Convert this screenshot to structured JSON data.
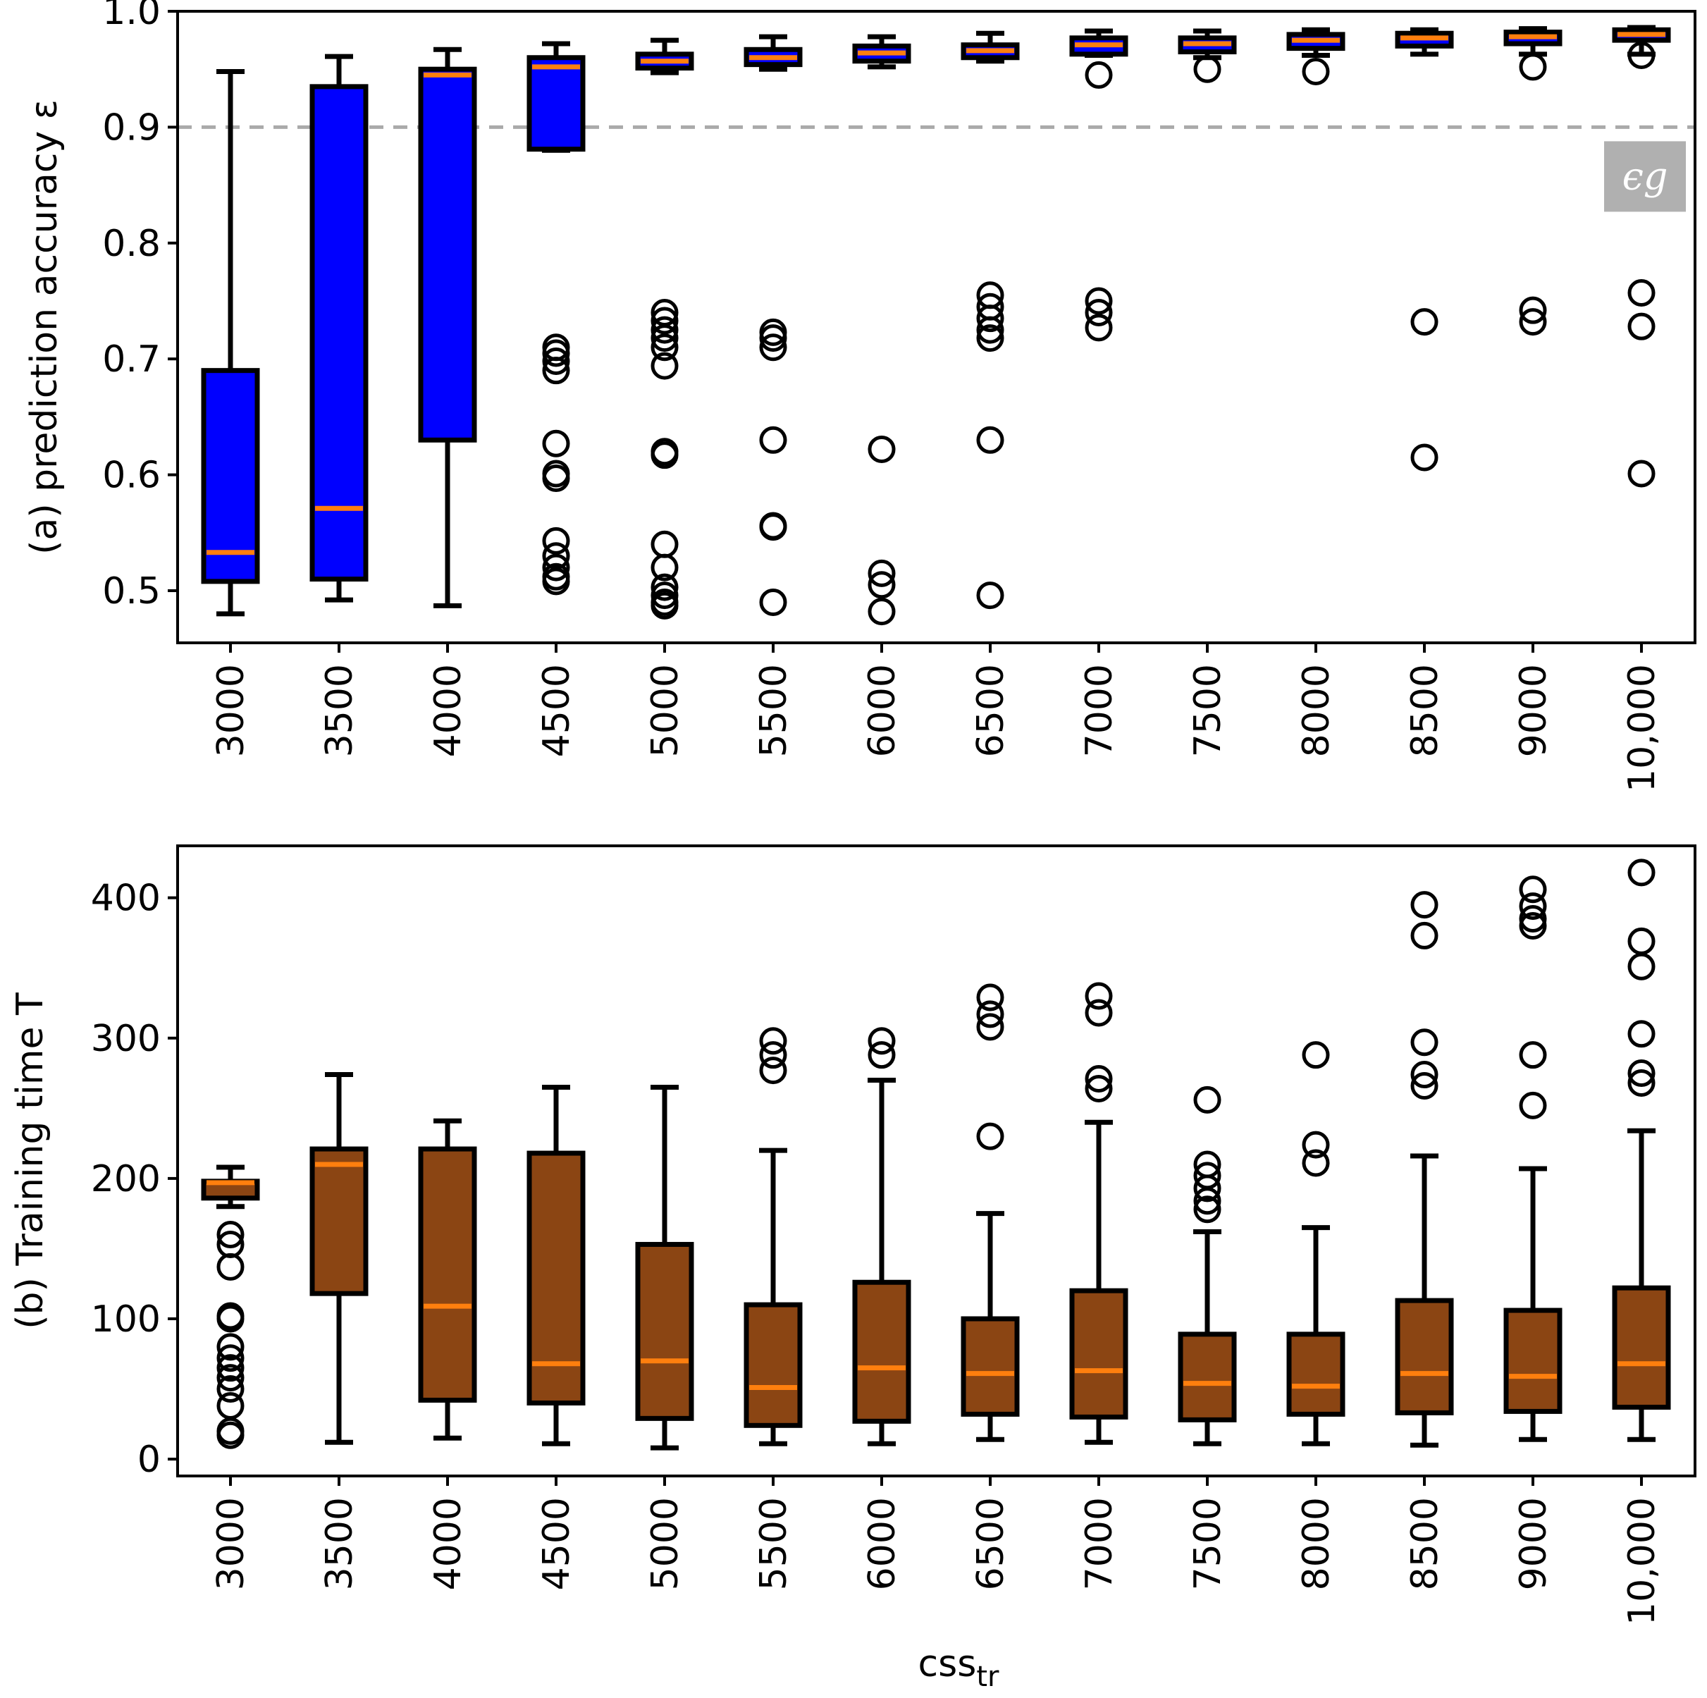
{
  "chart_data": [
    {
      "type": "box",
      "panel": "top",
      "ylabel": "(a) prediction accuracy ε",
      "xlabel": "",
      "ylim": [
        0.455,
        1.0
      ],
      "yticks": [
        0.5,
        0.6,
        0.7,
        0.8,
        0.9,
        1.0
      ],
      "ytick_labels": [
        "0.5",
        "0.6",
        "0.7",
        "0.8",
        "0.9",
        "1.0"
      ],
      "box_color": "#0000ff",
      "median_color": "#ff7f0e",
      "reference_line": {
        "value": 0.9,
        "label": "ϵg",
        "style": "dashed",
        "color": "#aaaaaa"
      },
      "categories": [
        "3000",
        "3500",
        "4000",
        "4500",
        "5000",
        "5500",
        "6000",
        "6500",
        "7000",
        "7500",
        "8000",
        "8500",
        "9000",
        "10,000"
      ],
      "boxes": [
        {
          "whisker_low": 0.48,
          "q1": 0.508,
          "median": 0.533,
          "q3": 0.69,
          "whisker_high": 0.948,
          "fliers": []
        },
        {
          "whisker_low": 0.492,
          "q1": 0.51,
          "median": 0.571,
          "q3": 0.935,
          "whisker_high": 0.961,
          "fliers": []
        },
        {
          "whisker_low": 0.487,
          "q1": 0.63,
          "median": 0.945,
          "q3": 0.95,
          "whisker_high": 0.967,
          "fliers": []
        },
        {
          "whisker_low": 0.88,
          "q1": 0.881,
          "median": 0.952,
          "q3": 0.96,
          "whisker_high": 0.972,
          "fliers": [
            0.71,
            0.705,
            0.698,
            0.69,
            0.627,
            0.601,
            0.597,
            0.543,
            0.53,
            0.52,
            0.512,
            0.508
          ]
        },
        {
          "whisker_low": 0.947,
          "q1": 0.951,
          "median": 0.957,
          "q3": 0.963,
          "whisker_high": 0.975,
          "fliers": [
            0.74,
            0.733,
            0.725,
            0.718,
            0.71,
            0.694,
            0.62,
            0.617,
            0.54,
            0.52,
            0.503,
            0.496,
            0.49,
            0.487
          ]
        },
        {
          "whisker_low": 0.95,
          "q1": 0.954,
          "median": 0.96,
          "q3": 0.967,
          "whisker_high": 0.978,
          "fliers": [
            0.723,
            0.718,
            0.71,
            0.63,
            0.556,
            0.555,
            0.49
          ]
        },
        {
          "whisker_low": 0.952,
          "q1": 0.957,
          "median": 0.964,
          "q3": 0.97,
          "whisker_high": 0.978,
          "fliers": [
            0.622,
            0.515,
            0.505,
            0.482
          ]
        },
        {
          "whisker_low": 0.957,
          "q1": 0.96,
          "median": 0.966,
          "q3": 0.971,
          "whisker_high": 0.981,
          "fliers": [
            0.755,
            0.745,
            0.735,
            0.725,
            0.718,
            0.63,
            0.496
          ]
        },
        {
          "whisker_low": 0.962,
          "q1": 0.963,
          "median": 0.971,
          "q3": 0.977,
          "whisker_high": 0.983,
          "fliers": [
            0.945,
            0.75,
            0.74,
            0.727
          ]
        },
        {
          "whisker_low": 0.96,
          "q1": 0.965,
          "median": 0.972,
          "q3": 0.977,
          "whisker_high": 0.983,
          "fliers": [
            0.95
          ]
        },
        {
          "whisker_low": 0.962,
          "q1": 0.968,
          "median": 0.975,
          "q3": 0.98,
          "whisker_high": 0.984,
          "fliers": [
            0.948
          ]
        },
        {
          "whisker_low": 0.963,
          "q1": 0.97,
          "median": 0.977,
          "q3": 0.981,
          "whisker_high": 0.984,
          "fliers": [
            0.732,
            0.615
          ]
        },
        {
          "whisker_low": 0.963,
          "q1": 0.972,
          "median": 0.978,
          "q3": 0.982,
          "whisker_high": 0.985,
          "fliers": [
            0.952,
            0.742,
            0.732
          ]
        },
        {
          "whisker_low": 0.963,
          "q1": 0.975,
          "median": 0.98,
          "q3": 0.984,
          "whisker_high": 0.986,
          "fliers": [
            0.962,
            0.757,
            0.728,
            0.601
          ]
        }
      ]
    },
    {
      "type": "box",
      "panel": "bottom",
      "ylabel": "(b) Training time T",
      "xlabel_main": "css",
      "xlabel_sub": "tr",
      "ylim": [
        -12,
        437
      ],
      "yticks": [
        0,
        100,
        200,
        300,
        400
      ],
      "ytick_labels": [
        "0",
        "100",
        "200",
        "300",
        "400"
      ],
      "box_color": "#8b4513",
      "median_color": "#ff7f0e",
      "categories": [
        "3000",
        "3500",
        "4000",
        "4500",
        "5000",
        "5500",
        "6000",
        "6500",
        "7000",
        "7500",
        "8000",
        "8500",
        "9000",
        "10,000"
      ],
      "boxes": [
        {
          "whisker_low": 180,
          "q1": 186,
          "median": 197,
          "q3": 198,
          "whisker_high": 208,
          "fliers": [
            160,
            153,
            137,
            102,
            100,
            80,
            72,
            65,
            58,
            50,
            38,
            20,
            17
          ]
        },
        {
          "whisker_low": 12,
          "q1": 118,
          "median": 210,
          "q3": 221,
          "whisker_high": 274,
          "fliers": []
        },
        {
          "whisker_low": 15,
          "q1": 42,
          "median": 109,
          "q3": 221,
          "whisker_high": 241,
          "fliers": []
        },
        {
          "whisker_low": 11,
          "q1": 40,
          "median": 68,
          "q3": 218,
          "whisker_high": 265,
          "fliers": []
        },
        {
          "whisker_low": 8,
          "q1": 29,
          "median": 70,
          "q3": 153,
          "whisker_high": 265,
          "fliers": []
        },
        {
          "whisker_low": 11,
          "q1": 24,
          "median": 51,
          "q3": 110,
          "whisker_high": 220,
          "fliers": [
            298,
            288,
            277
          ]
        },
        {
          "whisker_low": 11,
          "q1": 27,
          "median": 65,
          "q3": 126,
          "whisker_high": 270,
          "fliers": [
            298,
            288
          ]
        },
        {
          "whisker_low": 14,
          "q1": 32,
          "median": 61,
          "q3": 100,
          "whisker_high": 175,
          "fliers": [
            329,
            317,
            308,
            230
          ]
        },
        {
          "whisker_low": 12,
          "q1": 30,
          "median": 63,
          "q3": 120,
          "whisker_high": 240,
          "fliers": [
            330,
            318,
            271,
            264
          ]
        },
        {
          "whisker_low": 11,
          "q1": 28,
          "median": 54,
          "q3": 89,
          "whisker_high": 162,
          "fliers": [
            256,
            210,
            202,
            193,
            184,
            178
          ]
        },
        {
          "whisker_low": 11,
          "q1": 32,
          "median": 52,
          "q3": 89,
          "whisker_high": 165,
          "fliers": [
            288,
            224,
            211
          ]
        },
        {
          "whisker_low": 10,
          "q1": 33,
          "median": 61,
          "q3": 113,
          "whisker_high": 216,
          "fliers": [
            395,
            373,
            297,
            274,
            266
          ]
        },
        {
          "whisker_low": 14,
          "q1": 34,
          "median": 59,
          "q3": 106,
          "whisker_high": 207,
          "fliers": [
            406,
            394,
            385,
            380,
            288,
            252
          ]
        },
        {
          "whisker_low": 14,
          "q1": 37,
          "median": 68,
          "q3": 122,
          "whisker_high": 234,
          "fliers": [
            418,
            369,
            351,
            303,
            275,
            268
          ]
        }
      ]
    }
  ]
}
